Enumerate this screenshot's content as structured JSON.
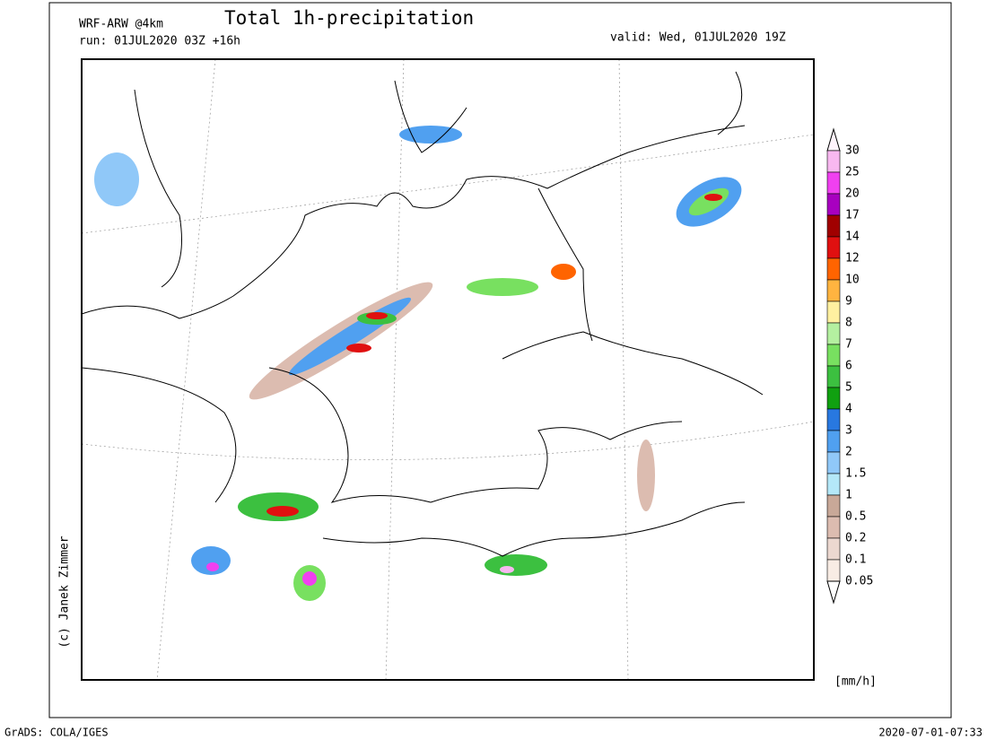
{
  "header": {
    "model": "WRF-ARW @4km",
    "title": "Total 1h-precipitation",
    "run": "run: 01JUL2020 03Z +16h",
    "valid": "valid: Wed, 01JUL2020 19Z"
  },
  "legend": {
    "labels": [
      30,
      25,
      20,
      17,
      14,
      12,
      10,
      9,
      8,
      7,
      6,
      5,
      4,
      3,
      2,
      1.5,
      1,
      0.5,
      0.2,
      0.1,
      0.05
    ],
    "colors": [
      "#fff4fc",
      "#f8b8f0",
      "#f040f0",
      "#a800c0",
      "#a00000",
      "#e01010",
      "#ff6400",
      "#ffb440",
      "#fff0a0",
      "#b4f0a0",
      "#78e060",
      "#3cc040",
      "#10a010",
      "#2878e0",
      "#50a0f0",
      "#90c8f8",
      "#b4e8f8",
      "#c8a898",
      "#dcbcb0",
      "#ecd8d0",
      "#f8ece4",
      "#ffffff"
    ],
    "unit": "[mm/h]"
  },
  "credit": "(c) Janek Zimmer",
  "footer": {
    "left": "GrADS: COLA/IGES",
    "right": "2020-07-01-07:33"
  }
}
